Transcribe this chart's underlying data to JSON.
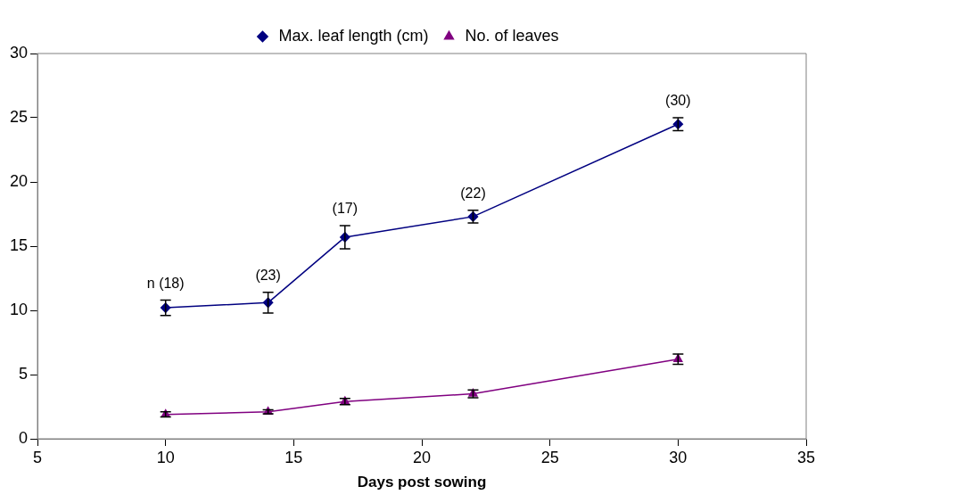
{
  "chart_data": {
    "type": "line",
    "xlabel": "Days post sowing",
    "x": [
      10,
      14,
      17,
      22,
      30
    ],
    "series": [
      {
        "name": "Max. leaf length (cm)",
        "color": "#000080",
        "marker": "diamond",
        "values": [
          10.2,
          10.6,
          15.7,
          17.3,
          24.5
        ],
        "errors": [
          0.6,
          0.8,
          0.9,
          0.5,
          0.5
        ]
      },
      {
        "name": "No. of leaves",
        "color": "#800080",
        "marker": "triangle",
        "values": [
          1.9,
          2.1,
          2.9,
          3.5,
          6.2
        ],
        "errors": [
          0.2,
          0.15,
          0.25,
          0.3,
          0.4
        ]
      }
    ],
    "xlim": [
      5,
      35
    ],
    "xticks": [
      5,
      10,
      15,
      20,
      25,
      30,
      35
    ],
    "ylim": [
      0,
      30
    ],
    "yticks": [
      0,
      5,
      10,
      15,
      20,
      25,
      30
    ],
    "grid": false,
    "legend": "top",
    "annotations": [
      {
        "text": "n (18)",
        "x": 10,
        "y": 10.2
      },
      {
        "text": "(23)",
        "x": 14,
        "y": 10.6
      },
      {
        "text": "(17)",
        "x": 17,
        "y": 15.7
      },
      {
        "text": "(22)",
        "x": 22,
        "y": 17.3
      },
      {
        "text": "(30)",
        "x": 30,
        "y": 24.5
      }
    ]
  }
}
